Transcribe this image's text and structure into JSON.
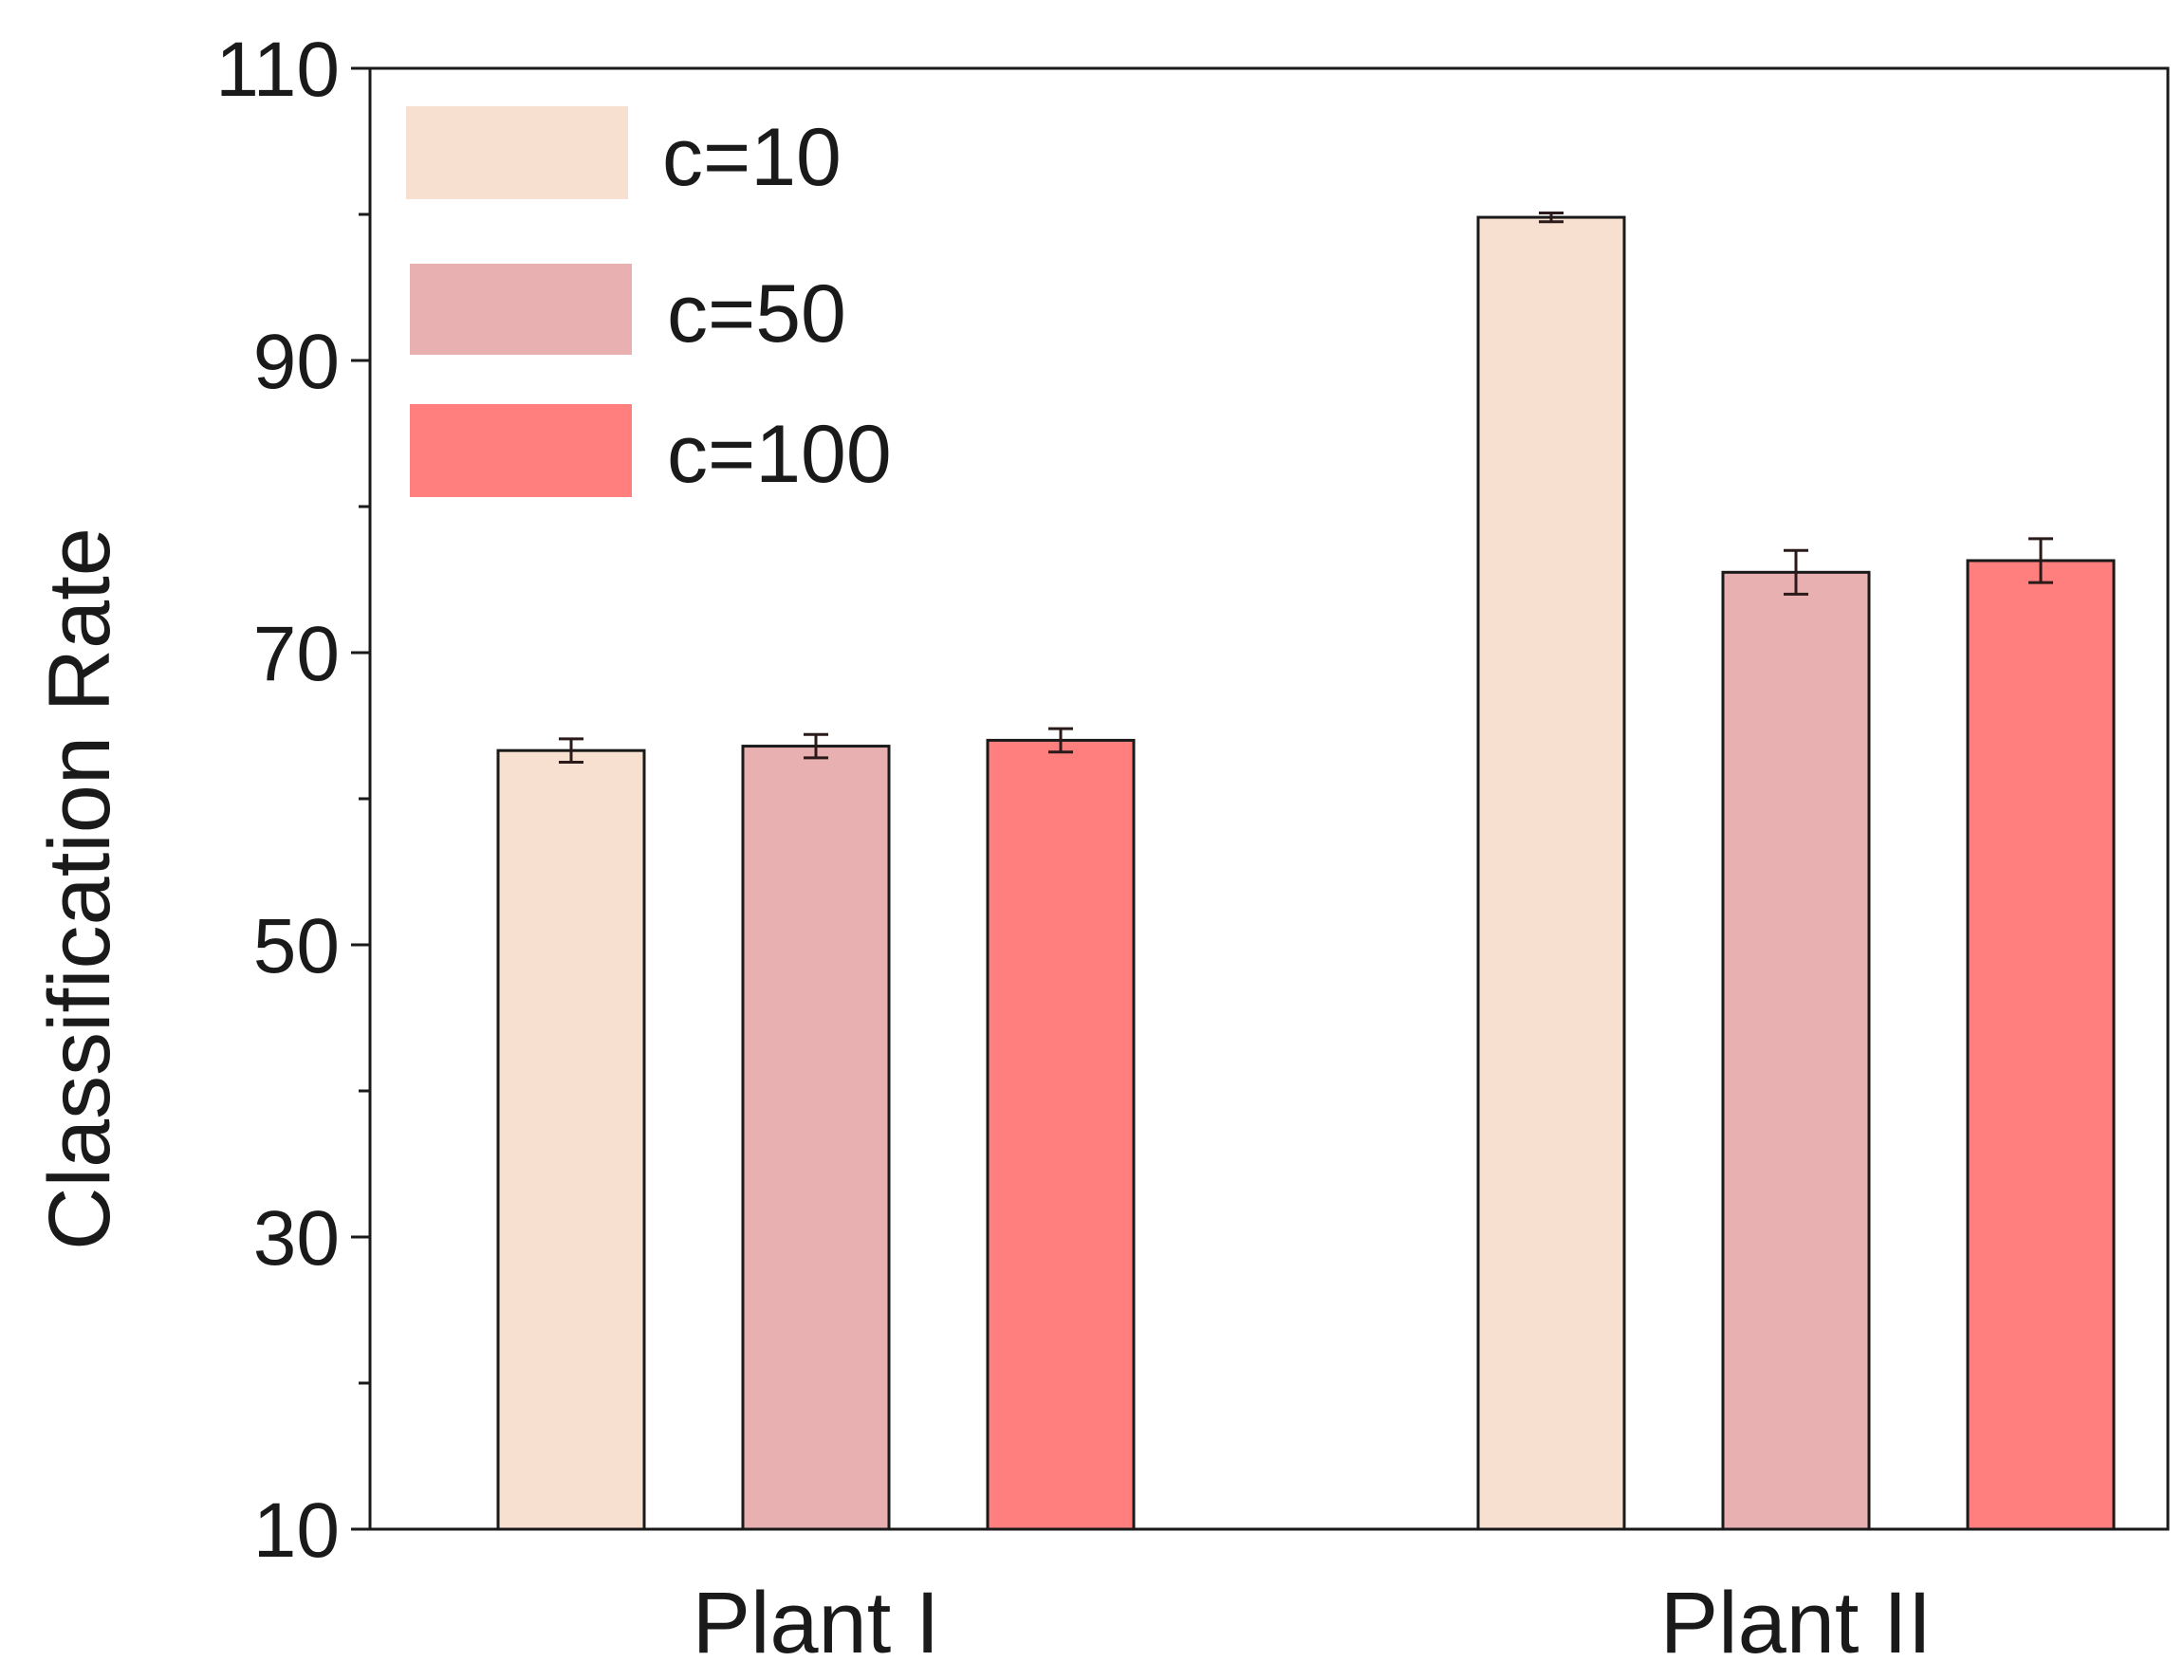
{
  "chart_data": {
    "type": "bar",
    "title": "",
    "xlabel": "",
    "ylabel": "Classification Rate",
    "categories": [
      "Plant I",
      "Plant II"
    ],
    "ylim": [
      10,
      110
    ],
    "yticks_major": [
      10,
      30,
      50,
      70,
      90,
      110
    ],
    "yticks_minor": [
      20,
      40,
      60,
      80,
      100
    ],
    "grid": false,
    "legend_position": "top-left",
    "series": [
      {
        "name": "c=10",
        "color": "#f7e0cf",
        "values": [
          63.3,
          99.8
        ],
        "errors": [
          0.8,
          0.3
        ]
      },
      {
        "name": "c=50",
        "color": "#e8b0b0",
        "values": [
          63.6,
          75.5
        ],
        "errors": [
          0.8,
          1.5
        ]
      },
      {
        "name": "c=100",
        "color": "#ff7f7f",
        "values": [
          64.0,
          76.3
        ],
        "errors": [
          0.8,
          1.5
        ]
      }
    ]
  }
}
